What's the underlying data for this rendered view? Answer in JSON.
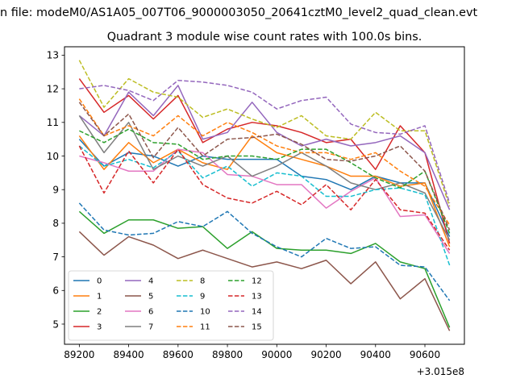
{
  "figure": {
    "suptitle": "n file: modeM0/AS1A05_007T06_9000003050_20641cztM0_level2_quad_clean.evt"
  },
  "chart_data": {
    "type": "line",
    "title": "Quadrant 3 module wise count rates with 100.0s bins.",
    "xlabel": "",
    "ylabel": "",
    "x_offset_label": "+3.015e8",
    "x": [
      89200,
      89300,
      89400,
      89500,
      89600,
      89700,
      89800,
      89900,
      90000,
      90100,
      90200,
      90300,
      90400,
      90500,
      90600,
      90700
    ],
    "xlim": [
      89140,
      90760
    ],
    "ylim": [
      4.4,
      13.25
    ],
    "x_ticks": [
      89200,
      89400,
      89600,
      89800,
      90000,
      90200,
      90400,
      90600
    ],
    "y_ticks": [
      5,
      6,
      7,
      8,
      9,
      10,
      11,
      12,
      13
    ],
    "grid": false,
    "legend": {
      "placement": "lower-left",
      "columns": 4
    },
    "series": [
      {
        "name": "0",
        "color": "#1f77b4",
        "dash": "solid",
        "values": [
          10.5,
          9.7,
          10.1,
          10.0,
          9.7,
          10.0,
          9.9,
          9.9,
          9.9,
          9.4,
          9.3,
          9.0,
          9.4,
          9.2,
          9.2,
          7.6
        ]
      },
      {
        "name": "1",
        "color": "#ff7f0e",
        "dash": "solid",
        "values": [
          10.6,
          9.6,
          10.4,
          9.8,
          10.2,
          9.8,
          9.6,
          10.6,
          10.1,
          9.9,
          9.7,
          9.4,
          9.4,
          9.1,
          9.2,
          7.3
        ]
      },
      {
        "name": "2",
        "color": "#2ca02c",
        "dash": "solid",
        "values": [
          8.35,
          7.7,
          8.1,
          8.1,
          7.85,
          7.9,
          7.25,
          7.75,
          7.25,
          7.2,
          7.2,
          7.1,
          7.4,
          6.85,
          6.65,
          4.9
        ]
      },
      {
        "name": "3",
        "color": "#d62728",
        "dash": "solid",
        "values": [
          12.3,
          11.3,
          11.8,
          11.1,
          11.8,
          10.4,
          10.8,
          11.0,
          10.9,
          10.7,
          10.4,
          10.5,
          9.6,
          10.9,
          10.1,
          7.4
        ]
      },
      {
        "name": "4",
        "color": "#9467bd",
        "dash": "solid",
        "values": [
          11.2,
          10.6,
          11.9,
          11.2,
          12.1,
          10.5,
          10.7,
          11.6,
          10.7,
          10.3,
          10.5,
          10.3,
          10.4,
          10.6,
          10.1,
          8.4
        ]
      },
      {
        "name": "5",
        "color": "#8c564b",
        "dash": "solid",
        "values": [
          7.75,
          7.05,
          7.6,
          7.35,
          6.95,
          7.2,
          6.95,
          6.7,
          6.85,
          6.65,
          6.9,
          6.2,
          6.85,
          5.75,
          6.35,
          4.8
        ]
      },
      {
        "name": "6",
        "color": "#e377c2",
        "dash": "solid",
        "values": [
          10.0,
          9.8,
          9.55,
          9.55,
          10.2,
          10.1,
          9.45,
          9.4,
          9.15,
          9.15,
          8.45,
          8.95,
          9.35,
          8.2,
          8.25,
          7.1
        ]
      },
      {
        "name": "7",
        "color": "#7f7f7f",
        "dash": "solid",
        "values": [
          11.2,
          10.1,
          11.0,
          9.6,
          10.0,
          9.7,
          10.0,
          9.4,
          9.7,
          10.1,
          9.7,
          9.2,
          9.0,
          9.2,
          8.9,
          7.5
        ]
      },
      {
        "name": "8",
        "color": "#bcbd22",
        "dash": "dashed",
        "values": [
          12.85,
          11.45,
          12.3,
          11.9,
          11.75,
          11.15,
          11.4,
          11.1,
          10.85,
          11.2,
          10.6,
          10.5,
          11.3,
          10.75,
          10.75,
          8.5
        ]
      },
      {
        "name": "9",
        "color": "#17becf",
        "dash": "dashed",
        "values": [
          10.3,
          9.7,
          9.9,
          9.65,
          10.15,
          9.35,
          9.7,
          9.1,
          9.5,
          9.4,
          8.8,
          8.8,
          9.0,
          9.05,
          8.85,
          6.75
        ]
      },
      {
        "name": "10",
        "color": "#1f77b4",
        "dash": "dashed",
        "values": [
          8.6,
          7.8,
          7.65,
          7.7,
          8.05,
          7.9,
          8.35,
          7.7,
          7.3,
          7.0,
          7.55,
          7.25,
          7.3,
          6.75,
          6.7,
          5.7
        ]
      },
      {
        "name": "11",
        "color": "#ff7f0e",
        "dash": "dashed",
        "values": [
          11.7,
          10.6,
          10.9,
          10.6,
          11.2,
          10.6,
          11.0,
          10.7,
          10.3,
          10.1,
          10.1,
          9.9,
          10.1,
          9.55,
          9.1,
          7.95
        ]
      },
      {
        "name": "12",
        "color": "#2ca02c",
        "dash": "dashed",
        "values": [
          10.75,
          10.4,
          10.8,
          10.4,
          10.35,
          9.9,
          10.0,
          10.0,
          9.9,
          10.2,
          10.2,
          9.8,
          9.35,
          9.05,
          9.55,
          7.7
        ]
      },
      {
        "name": "13",
        "color": "#d62728",
        "dash": "dashed",
        "values": [
          10.3,
          8.9,
          10.15,
          9.2,
          10.2,
          9.15,
          8.75,
          8.6,
          8.95,
          8.55,
          9.15,
          8.4,
          9.3,
          8.4,
          8.3,
          7.2
        ]
      },
      {
        "name": "14",
        "color": "#9467bd",
        "dash": "dashed",
        "values": [
          12.0,
          12.1,
          11.95,
          11.65,
          12.25,
          12.2,
          12.1,
          11.9,
          11.4,
          11.65,
          11.75,
          10.95,
          10.7,
          10.65,
          10.9,
          8.6
        ]
      },
      {
        "name": "15",
        "color": "#8c564b",
        "dash": "dashed",
        "values": [
          11.6,
          10.6,
          11.25,
          9.95,
          10.85,
          10.0,
          10.5,
          10.55,
          10.65,
          10.35,
          9.9,
          9.85,
          10.0,
          10.3,
          9.55,
          7.8
        ]
      }
    ]
  }
}
